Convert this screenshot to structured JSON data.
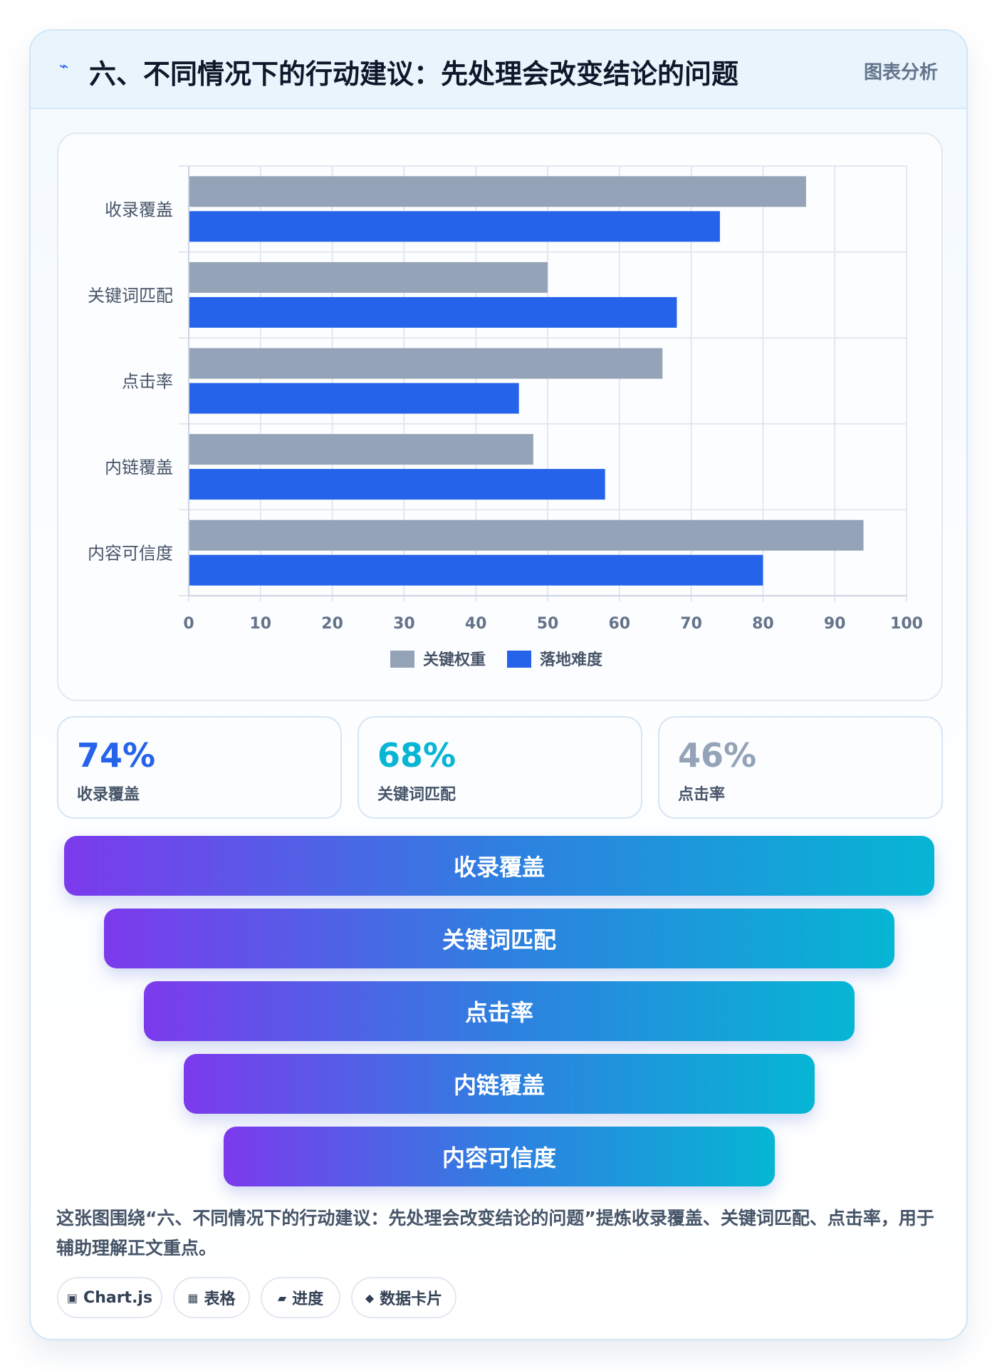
{
  "header": {
    "icon": "lightning-icon",
    "title": "六、不同情况下的行动建议：先处理会改变结论的问题",
    "badge": "图表分析"
  },
  "chart_data": {
    "type": "bar",
    "orientation": "horizontal",
    "categories": [
      "收录覆盖",
      "关键词匹配",
      "点击率",
      "内链覆盖",
      "内容可信度"
    ],
    "series": [
      {
        "name": "关键权重",
        "color": "#94a3b8",
        "values": [
          86,
          50,
          66,
          48,
          94
        ]
      },
      {
        "name": "落地难度",
        "color": "#2563eb",
        "values": [
          74,
          68,
          46,
          58,
          80
        ]
      }
    ],
    "xlim": [
      0,
      100
    ],
    "xticks": [
      0,
      10,
      20,
      30,
      40,
      50,
      60,
      70,
      80,
      90,
      100
    ],
    "grid": true,
    "legend": "bottom"
  },
  "stats": [
    {
      "value": "74%",
      "label": "收录覆盖",
      "color": "#2563eb"
    },
    {
      "value": "68%",
      "label": "关键词匹配",
      "color": "#06b6d4"
    },
    {
      "value": "46%",
      "label": "点击率",
      "color": "#94a3b8"
    }
  ],
  "funnel": [
    "收录覆盖",
    "关键词匹配",
    "点击率",
    "内链覆盖",
    "内容可信度"
  ],
  "caption": "这张图围绕“六、不同情况下的行动建议：先处理会改变结论的问题”提炼收录覆盖、关键词匹配、点击率，用于辅助理解正文重点。",
  "tags": [
    {
      "icon": "▣",
      "icon_name": "chart-icon",
      "label": "Chart.js"
    },
    {
      "icon": "▦",
      "icon_name": "table-icon",
      "label": "表格"
    },
    {
      "icon": "▰",
      "icon_name": "progress-icon",
      "label": "进度"
    },
    {
      "icon": "◆",
      "icon_name": "data-card-icon",
      "label": "数据卡片"
    }
  ]
}
